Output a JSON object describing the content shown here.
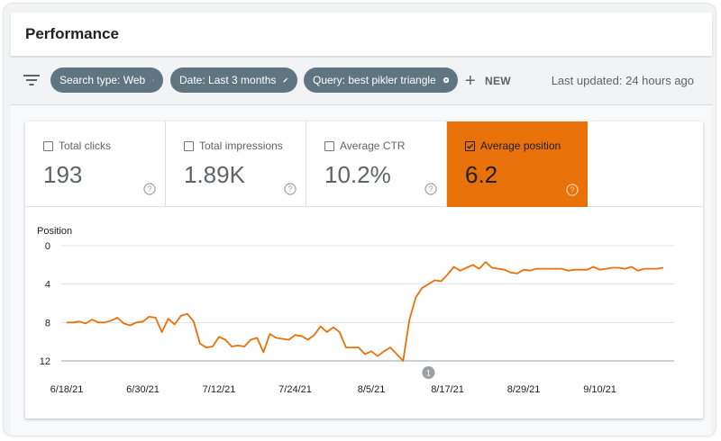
{
  "header": {
    "title": "Performance"
  },
  "filters": {
    "chips": [
      {
        "label": "Search type: Web",
        "icon": "pencil-icon"
      },
      {
        "label": "Date: Last 3 months",
        "icon": "pencil-icon"
      },
      {
        "label": "Query: best pikler triangle",
        "icon": "close-circle-icon"
      }
    ],
    "new_label": "NEW",
    "last_updated": "Last updated: 24 hours ago"
  },
  "metrics": [
    {
      "label": "Total clicks",
      "value": "193",
      "checked": false
    },
    {
      "label": "Total impressions",
      "value": "1.89K",
      "checked": false
    },
    {
      "label": "Average CTR",
      "value": "10.2%",
      "checked": false
    },
    {
      "label": "Average position",
      "value": "6.2",
      "checked": true
    }
  ],
  "colors": {
    "accent": "#e8710a",
    "chip": "#5f7681"
  },
  "annotation_marker": "1",
  "chart_data": {
    "type": "line",
    "ylabel": "Position",
    "yreversed": true,
    "ylim": [
      0,
      12
    ],
    "yticks": [
      "0",
      "4",
      "8",
      "12"
    ],
    "xtick_labels": [
      "6/18/21",
      "6/30/21",
      "7/12/21",
      "7/24/21",
      "8/5/21",
      "8/17/21",
      "8/29/21",
      "9/10/21"
    ],
    "x_start": "6/18/21",
    "grid": true,
    "series": [
      {
        "color": "#e8710a",
        "values": [
          8.0,
          8.0,
          7.9,
          8.1,
          7.7,
          8.0,
          8.0,
          7.8,
          7.5,
          8.1,
          8.3,
          8.0,
          7.9,
          7.4,
          7.5,
          9.0,
          7.6,
          8.2,
          7.3,
          7.1,
          7.9,
          10.2,
          10.6,
          10.5,
          9.5,
          9.8,
          10.5,
          10.4,
          10.5,
          9.8,
          9.6,
          11.1,
          9.2,
          9.6,
          9.7,
          9.8,
          9.3,
          9.4,
          9.8,
          9.3,
          8.4,
          9.0,
          8.5,
          9.0,
          10.6,
          10.6,
          10.6,
          11.3,
          11.0,
          11.5,
          11.0,
          10.6,
          11.3,
          12.0,
          7.7,
          5.4,
          4.4,
          4.0,
          3.6,
          3.7,
          3.0,
          2.2,
          2.6,
          2.3,
          2.0,
          2.4,
          1.7,
          2.3,
          2.4,
          2.5,
          2.8,
          2.9,
          2.5,
          2.6,
          2.4,
          2.4,
          2.4,
          2.4,
          2.4,
          2.6,
          2.5,
          2.5,
          2.5,
          2.2,
          2.5,
          2.4,
          2.3,
          2.3,
          2.4,
          2.2,
          2.6,
          2.4,
          2.4,
          2.4,
          2.3
        ]
      }
    ]
  }
}
